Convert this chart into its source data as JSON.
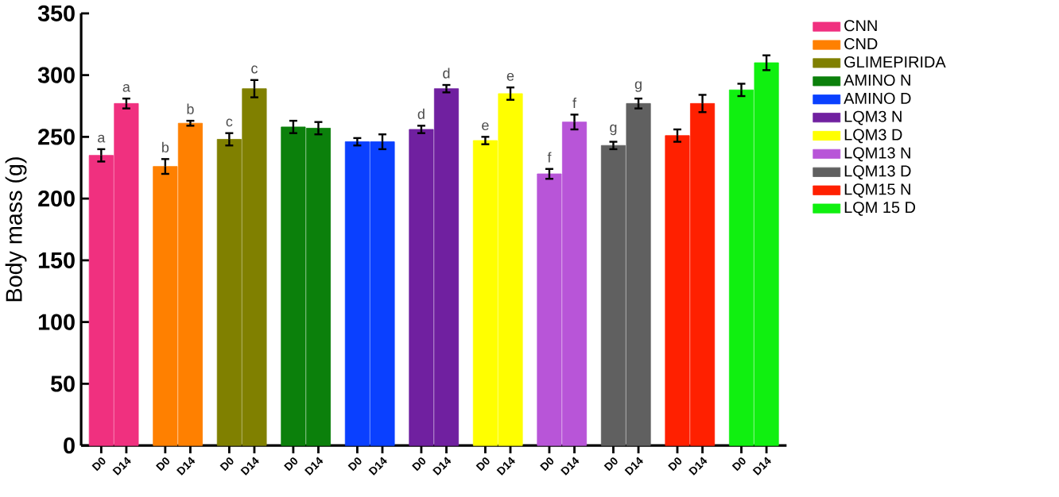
{
  "chart_data": {
    "type": "bar",
    "ylabel": "Body mass (g)",
    "categories": [
      "D0",
      "D14",
      "D0",
      "D14",
      "D0",
      "D14",
      "D0",
      "D14",
      "D0",
      "D14",
      "D0",
      "D14",
      "D0",
      "D14",
      "D0",
      "D14",
      "D0",
      "D14",
      "D0",
      "D14",
      "D0",
      "D14"
    ],
    "ylim": [
      0,
      350
    ],
    "yticks": [
      0,
      50,
      100,
      150,
      200,
      250,
      300,
      350
    ],
    "grid": false,
    "legend": "right",
    "series": [
      {
        "name": "CNN",
        "color": "#f0307f",
        "values": [
          235,
          277,
          null,
          null,
          null,
          null,
          null,
          null,
          null,
          null,
          null,
          null,
          null,
          null,
          null,
          null,
          null,
          null,
          null,
          null,
          null,
          null
        ],
        "errors": [
          5,
          4,
          null,
          null,
          null,
          null,
          null,
          null,
          null,
          null,
          null,
          null,
          null,
          null,
          null,
          null,
          null,
          null,
          null,
          null,
          null,
          null
        ],
        "value_labels": [
          "a",
          "a",
          null,
          null,
          null,
          null,
          null,
          null,
          null,
          null,
          null,
          null,
          null,
          null,
          null,
          null,
          null,
          null,
          null,
          null,
          null,
          null
        ]
      },
      {
        "name": "CND",
        "color": "#ff8000",
        "values": [
          null,
          null,
          226,
          261,
          null,
          null,
          null,
          null,
          null,
          null,
          null,
          null,
          null,
          null,
          null,
          null,
          null,
          null,
          null,
          null,
          null,
          null
        ],
        "errors": [
          null,
          null,
          6,
          2,
          null,
          null,
          null,
          null,
          null,
          null,
          null,
          null,
          null,
          null,
          null,
          null,
          null,
          null,
          null,
          null,
          null,
          null
        ],
        "value_labels": [
          null,
          null,
          "b",
          "b",
          null,
          null,
          null,
          null,
          null,
          null,
          null,
          null,
          null,
          null,
          null,
          null,
          null,
          null,
          null,
          null,
          null,
          null
        ]
      },
      {
        "name": "GLIMEPIRIDA",
        "color": "#808000",
        "values": [
          null,
          null,
          null,
          null,
          248,
          289,
          null,
          null,
          null,
          null,
          null,
          null,
          null,
          null,
          null,
          null,
          null,
          null,
          null,
          null,
          null,
          null
        ],
        "errors": [
          null,
          null,
          null,
          null,
          5,
          7,
          null,
          null,
          null,
          null,
          null,
          null,
          null,
          null,
          null,
          null,
          null,
          null,
          null,
          null,
          null,
          null
        ],
        "value_labels": [
          null,
          null,
          null,
          null,
          "c",
          "c",
          null,
          null,
          null,
          null,
          null,
          null,
          null,
          null,
          null,
          null,
          null,
          null,
          null,
          null,
          null,
          null
        ]
      },
      {
        "name": "AMINO N",
        "color": "#0b800b",
        "values": [
          null,
          null,
          null,
          null,
          null,
          null,
          258,
          257,
          null,
          null,
          null,
          null,
          null,
          null,
          null,
          null,
          null,
          null,
          null,
          null,
          null,
          null
        ],
        "errors": [
          null,
          null,
          null,
          null,
          null,
          null,
          5,
          5,
          null,
          null,
          null,
          null,
          null,
          null,
          null,
          null,
          null,
          null,
          null,
          null,
          null,
          null
        ]
      },
      {
        "name": "AMINO D",
        "color": "#0a40ff",
        "values": [
          null,
          null,
          null,
          null,
          null,
          null,
          null,
          null,
          246,
          246,
          null,
          null,
          null,
          null,
          null,
          null,
          null,
          null,
          null,
          null,
          null,
          null
        ],
        "errors": [
          null,
          null,
          null,
          null,
          null,
          null,
          null,
          null,
          3,
          6,
          null,
          null,
          null,
          null,
          null,
          null,
          null,
          null,
          null,
          null,
          null,
          null
        ]
      },
      {
        "name": "LQM3 N",
        "color": "#7020a0",
        "values": [
          null,
          null,
          null,
          null,
          null,
          null,
          null,
          null,
          null,
          null,
          256,
          289,
          null,
          null,
          null,
          null,
          null,
          null,
          null,
          null,
          null,
          null
        ],
        "errors": [
          null,
          null,
          null,
          null,
          null,
          null,
          null,
          null,
          null,
          null,
          3,
          3,
          null,
          null,
          null,
          null,
          null,
          null,
          null,
          null,
          null,
          null
        ],
        "value_labels": [
          null,
          null,
          null,
          null,
          null,
          null,
          null,
          null,
          null,
          null,
          "d",
          "d",
          null,
          null,
          null,
          null,
          null,
          null,
          null,
          null,
          null,
          null
        ]
      },
      {
        "name": "LQM3 D",
        "color": "#ffff00",
        "values": [
          null,
          null,
          null,
          null,
          null,
          null,
          null,
          null,
          null,
          null,
          null,
          null,
          247,
          285,
          null,
          null,
          null,
          null,
          null,
          null,
          null,
          null
        ],
        "errors": [
          null,
          null,
          null,
          null,
          null,
          null,
          null,
          null,
          null,
          null,
          null,
          null,
          3,
          5,
          null,
          null,
          null,
          null,
          null,
          null,
          null,
          null
        ],
        "value_labels": [
          null,
          null,
          null,
          null,
          null,
          null,
          null,
          null,
          null,
          null,
          null,
          null,
          "e",
          "e",
          null,
          null,
          null,
          null,
          null,
          null,
          null,
          null
        ]
      },
      {
        "name": "LQM13 N",
        "color": "#b855d8",
        "values": [
          null,
          null,
          null,
          null,
          null,
          null,
          null,
          null,
          null,
          null,
          null,
          null,
          null,
          null,
          220,
          262,
          null,
          null,
          null,
          null,
          null,
          null
        ],
        "errors": [
          null,
          null,
          null,
          null,
          null,
          null,
          null,
          null,
          null,
          null,
          null,
          null,
          null,
          null,
          4,
          6,
          null,
          null,
          null,
          null,
          null,
          null
        ],
        "value_labels": [
          null,
          null,
          null,
          null,
          null,
          null,
          null,
          null,
          null,
          null,
          null,
          null,
          null,
          null,
          "f",
          "f",
          null,
          null,
          null,
          null,
          null,
          null
        ]
      },
      {
        "name": "LQM13 D",
        "color": "#606060",
        "values": [
          null,
          null,
          null,
          null,
          null,
          null,
          null,
          null,
          null,
          null,
          null,
          null,
          null,
          null,
          null,
          null,
          243,
          277,
          null,
          null,
          null,
          null
        ],
        "errors": [
          null,
          null,
          null,
          null,
          null,
          null,
          null,
          null,
          null,
          null,
          null,
          null,
          null,
          null,
          null,
          null,
          3,
          4,
          null,
          null,
          null,
          null
        ],
        "value_labels": [
          null,
          null,
          null,
          null,
          null,
          null,
          null,
          null,
          null,
          null,
          null,
          null,
          null,
          null,
          null,
          null,
          "g",
          "g",
          null,
          null,
          null,
          null
        ]
      },
      {
        "name": "LQM15 N",
        "color": "#ff2000",
        "values": [
          null,
          null,
          null,
          null,
          null,
          null,
          null,
          null,
          null,
          null,
          null,
          null,
          null,
          null,
          null,
          null,
          null,
          null,
          251,
          277,
          null,
          null
        ],
        "errors": [
          null,
          null,
          null,
          null,
          null,
          null,
          null,
          null,
          null,
          null,
          null,
          null,
          null,
          null,
          null,
          null,
          null,
          null,
          5,
          7,
          null,
          null
        ]
      },
      {
        "name": "LQM 15 D",
        "color": "#10f010",
        "values": [
          null,
          null,
          null,
          null,
          null,
          null,
          null,
          null,
          null,
          null,
          null,
          null,
          null,
          null,
          null,
          null,
          null,
          null,
          null,
          null,
          288,
          310
        ],
        "errors": [
          null,
          null,
          null,
          null,
          null,
          null,
          null,
          null,
          null,
          null,
          null,
          null,
          null,
          null,
          null,
          null,
          null,
          null,
          null,
          null,
          5,
          6
        ]
      }
    ]
  }
}
